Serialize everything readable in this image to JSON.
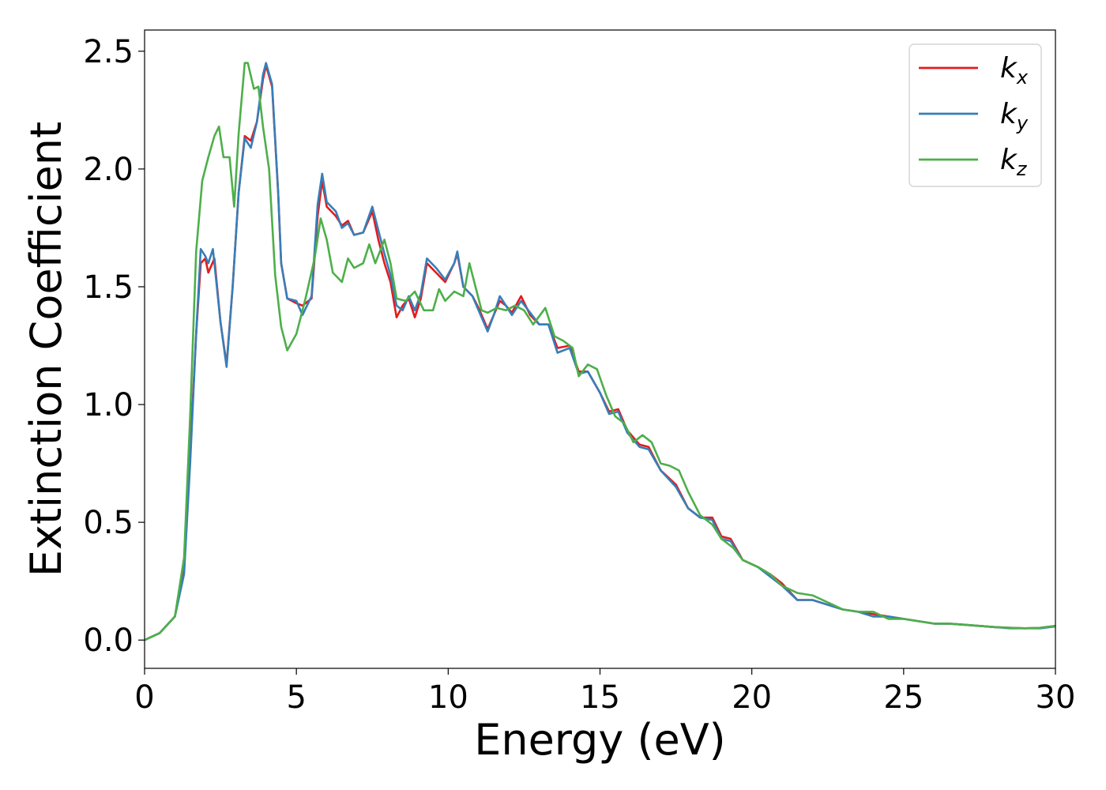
{
  "chart_data": {
    "type": "line",
    "xlabel": "Energy (eV)",
    "ylabel": "Extinction Coefficient",
    "xlim": [
      0,
      30
    ],
    "ylim": [
      -0.12,
      2.59
    ],
    "xticks": [
      0,
      5,
      10,
      15,
      20,
      25,
      30
    ],
    "xtick_labels": [
      "0",
      "5",
      "10",
      "15",
      "20",
      "25",
      "30"
    ],
    "yticks": [
      0.0,
      0.5,
      1.0,
      1.5,
      2.0,
      2.5
    ],
    "ytick_labels": [
      "0.0",
      "0.5",
      "1.0",
      "1.5",
      "2.0",
      "2.5"
    ],
    "grid": false,
    "legend_position": "top-right",
    "series": [
      {
        "name": "k_x",
        "legend_main": "k",
        "legend_sub": "x",
        "color": "#e41a1c",
        "points": [
          [
            0,
            0.0
          ],
          [
            0.5,
            0.03
          ],
          [
            1.0,
            0.1
          ],
          [
            1.3,
            0.3
          ],
          [
            1.5,
            0.8
          ],
          [
            1.7,
            1.3
          ],
          [
            1.85,
            1.6
          ],
          [
            2.0,
            1.62
          ],
          [
            2.1,
            1.56
          ],
          [
            2.3,
            1.62
          ],
          [
            2.5,
            1.35
          ],
          [
            2.7,
            1.17
          ],
          [
            2.9,
            1.5
          ],
          [
            3.1,
            1.9
          ],
          [
            3.3,
            2.14
          ],
          [
            3.5,
            2.12
          ],
          [
            3.7,
            2.2
          ],
          [
            3.9,
            2.38
          ],
          [
            4.0,
            2.44
          ],
          [
            4.2,
            2.35
          ],
          [
            4.4,
            1.9
          ],
          [
            4.5,
            1.6
          ],
          [
            4.7,
            1.45
          ],
          [
            5.0,
            1.43
          ],
          [
            5.2,
            1.42
          ],
          [
            5.5,
            1.45
          ],
          [
            5.7,
            1.8
          ],
          [
            5.85,
            1.95
          ],
          [
            6.0,
            1.84
          ],
          [
            6.3,
            1.8
          ],
          [
            6.5,
            1.76
          ],
          [
            6.7,
            1.78
          ],
          [
            6.9,
            1.72
          ],
          [
            7.2,
            1.73
          ],
          [
            7.5,
            1.82
          ],
          [
            7.7,
            1.7
          ],
          [
            7.9,
            1.6
          ],
          [
            8.1,
            1.52
          ],
          [
            8.3,
            1.37
          ],
          [
            8.5,
            1.42
          ],
          [
            8.7,
            1.45
          ],
          [
            8.9,
            1.37
          ],
          [
            9.1,
            1.45
          ],
          [
            9.3,
            1.6
          ],
          [
            9.6,
            1.56
          ],
          [
            9.9,
            1.52
          ],
          [
            10.2,
            1.6
          ],
          [
            10.3,
            1.64
          ],
          [
            10.5,
            1.5
          ],
          [
            10.8,
            1.46
          ],
          [
            11.0,
            1.41
          ],
          [
            11.3,
            1.32
          ],
          [
            11.5,
            1.38
          ],
          [
            11.7,
            1.44
          ],
          [
            11.9,
            1.42
          ],
          [
            12.1,
            1.39
          ],
          [
            12.4,
            1.46
          ],
          [
            12.7,
            1.38
          ],
          [
            13.0,
            1.34
          ],
          [
            13.3,
            1.34
          ],
          [
            13.6,
            1.24
          ],
          [
            14.0,
            1.25
          ],
          [
            14.3,
            1.14
          ],
          [
            14.6,
            1.14
          ],
          [
            15.0,
            1.05
          ],
          [
            15.3,
            0.97
          ],
          [
            15.6,
            0.98
          ],
          [
            15.9,
            0.89
          ],
          [
            16.3,
            0.83
          ],
          [
            16.6,
            0.82
          ],
          [
            17.0,
            0.72
          ],
          [
            17.5,
            0.66
          ],
          [
            17.9,
            0.56
          ],
          [
            18.3,
            0.52
          ],
          [
            18.7,
            0.52
          ],
          [
            19.0,
            0.44
          ],
          [
            19.3,
            0.43
          ],
          [
            19.7,
            0.34
          ],
          [
            20.2,
            0.31
          ],
          [
            20.6,
            0.28
          ],
          [
            21.0,
            0.24
          ],
          [
            21.5,
            0.17
          ],
          [
            22.0,
            0.17
          ],
          [
            22.5,
            0.15
          ],
          [
            23.0,
            0.13
          ],
          [
            23.5,
            0.12
          ],
          [
            24.0,
            0.11
          ],
          [
            24.5,
            0.1
          ],
          [
            25.0,
            0.09
          ],
          [
            25.5,
            0.08
          ],
          [
            26.0,
            0.07
          ],
          [
            26.5,
            0.07
          ],
          [
            27.0,
            0.065
          ],
          [
            27.5,
            0.06
          ],
          [
            28.0,
            0.055
          ],
          [
            28.5,
            0.052
          ],
          [
            29.0,
            0.05
          ],
          [
            29.5,
            0.052
          ],
          [
            30.0,
            0.06
          ]
        ]
      },
      {
        "name": "k_y",
        "legend_main": "k",
        "legend_sub": "y",
        "color": "#377eb8",
        "points": [
          [
            0,
            0.0
          ],
          [
            0.5,
            0.03
          ],
          [
            1.0,
            0.1
          ],
          [
            1.3,
            0.28
          ],
          [
            1.5,
            0.75
          ],
          [
            1.7,
            1.3
          ],
          [
            1.85,
            1.66
          ],
          [
            2.0,
            1.63
          ],
          [
            2.1,
            1.6
          ],
          [
            2.25,
            1.66
          ],
          [
            2.5,
            1.35
          ],
          [
            2.7,
            1.16
          ],
          [
            2.9,
            1.5
          ],
          [
            3.1,
            1.9
          ],
          [
            3.3,
            2.13
          ],
          [
            3.5,
            2.09
          ],
          [
            3.7,
            2.2
          ],
          [
            3.9,
            2.4
          ],
          [
            4.0,
            2.45
          ],
          [
            4.2,
            2.36
          ],
          [
            4.4,
            1.9
          ],
          [
            4.5,
            1.6
          ],
          [
            4.7,
            1.45
          ],
          [
            5.0,
            1.44
          ],
          [
            5.2,
            1.38
          ],
          [
            5.5,
            1.46
          ],
          [
            5.7,
            1.85
          ],
          [
            5.85,
            1.98
          ],
          [
            6.0,
            1.86
          ],
          [
            6.3,
            1.82
          ],
          [
            6.5,
            1.75
          ],
          [
            6.7,
            1.77
          ],
          [
            6.9,
            1.72
          ],
          [
            7.2,
            1.73
          ],
          [
            7.5,
            1.84
          ],
          [
            7.7,
            1.74
          ],
          [
            7.9,
            1.64
          ],
          [
            8.1,
            1.55
          ],
          [
            8.3,
            1.42
          ],
          [
            8.5,
            1.4
          ],
          [
            8.7,
            1.46
          ],
          [
            8.9,
            1.4
          ],
          [
            9.1,
            1.47
          ],
          [
            9.3,
            1.62
          ],
          [
            9.6,
            1.58
          ],
          [
            9.9,
            1.53
          ],
          [
            10.2,
            1.6
          ],
          [
            10.3,
            1.65
          ],
          [
            10.5,
            1.5
          ],
          [
            10.8,
            1.46
          ],
          [
            11.0,
            1.4
          ],
          [
            11.3,
            1.31
          ],
          [
            11.5,
            1.38
          ],
          [
            11.7,
            1.46
          ],
          [
            11.9,
            1.42
          ],
          [
            12.1,
            1.38
          ],
          [
            12.4,
            1.44
          ],
          [
            12.7,
            1.39
          ],
          [
            13.0,
            1.34
          ],
          [
            13.3,
            1.34
          ],
          [
            13.6,
            1.22
          ],
          [
            14.0,
            1.24
          ],
          [
            14.3,
            1.13
          ],
          [
            14.6,
            1.14
          ],
          [
            15.0,
            1.05
          ],
          [
            15.3,
            0.96
          ],
          [
            15.6,
            0.97
          ],
          [
            15.9,
            0.88
          ],
          [
            16.3,
            0.82
          ],
          [
            16.6,
            0.81
          ],
          [
            17.0,
            0.72
          ],
          [
            17.5,
            0.65
          ],
          [
            17.9,
            0.56
          ],
          [
            18.3,
            0.52
          ],
          [
            18.7,
            0.51
          ],
          [
            19.0,
            0.43
          ],
          [
            19.3,
            0.42
          ],
          [
            19.7,
            0.34
          ],
          [
            20.2,
            0.31
          ],
          [
            20.6,
            0.27
          ],
          [
            21.0,
            0.23
          ],
          [
            21.5,
            0.17
          ],
          [
            22.0,
            0.17
          ],
          [
            22.5,
            0.15
          ],
          [
            23.0,
            0.13
          ],
          [
            23.5,
            0.12
          ],
          [
            24.0,
            0.1
          ],
          [
            24.5,
            0.1
          ],
          [
            25.0,
            0.09
          ],
          [
            25.5,
            0.08
          ],
          [
            26.0,
            0.07
          ],
          [
            26.5,
            0.07
          ],
          [
            27.0,
            0.065
          ],
          [
            27.5,
            0.06
          ],
          [
            28.0,
            0.055
          ],
          [
            28.5,
            0.05
          ],
          [
            29.0,
            0.05
          ],
          [
            29.5,
            0.05
          ],
          [
            30.0,
            0.058
          ]
        ]
      },
      {
        "name": "k_z",
        "legend_main": "k",
        "legend_sub": "z",
        "color": "#4daf4a",
        "points": [
          [
            0,
            0.0
          ],
          [
            0.5,
            0.03
          ],
          [
            1.0,
            0.1
          ],
          [
            1.3,
            0.35
          ],
          [
            1.5,
            0.95
          ],
          [
            1.7,
            1.65
          ],
          [
            1.9,
            1.95
          ],
          [
            2.1,
            2.05
          ],
          [
            2.3,
            2.14
          ],
          [
            2.45,
            2.18
          ],
          [
            2.6,
            2.05
          ],
          [
            2.8,
            2.05
          ],
          [
            2.95,
            1.84
          ],
          [
            3.1,
            2.15
          ],
          [
            3.3,
            2.45
          ],
          [
            3.4,
            2.45
          ],
          [
            3.6,
            2.34
          ],
          [
            3.75,
            2.35
          ],
          [
            3.9,
            2.18
          ],
          [
            4.1,
            2.0
          ],
          [
            4.3,
            1.55
          ],
          [
            4.5,
            1.33
          ],
          [
            4.7,
            1.23
          ],
          [
            5.0,
            1.3
          ],
          [
            5.3,
            1.45
          ],
          [
            5.6,
            1.62
          ],
          [
            5.8,
            1.79
          ],
          [
            6.0,
            1.7
          ],
          [
            6.2,
            1.56
          ],
          [
            6.5,
            1.52
          ],
          [
            6.7,
            1.62
          ],
          [
            6.9,
            1.58
          ],
          [
            7.2,
            1.6
          ],
          [
            7.4,
            1.68
          ],
          [
            7.6,
            1.6
          ],
          [
            7.9,
            1.7
          ],
          [
            8.1,
            1.6
          ],
          [
            8.3,
            1.45
          ],
          [
            8.6,
            1.44
          ],
          [
            8.9,
            1.48
          ],
          [
            9.2,
            1.4
          ],
          [
            9.5,
            1.4
          ],
          [
            9.7,
            1.49
          ],
          [
            9.9,
            1.44
          ],
          [
            10.2,
            1.48
          ],
          [
            10.5,
            1.46
          ],
          [
            10.7,
            1.6
          ],
          [
            10.9,
            1.5
          ],
          [
            11.1,
            1.4
          ],
          [
            11.3,
            1.39
          ],
          [
            11.6,
            1.41
          ],
          [
            11.9,
            1.4
          ],
          [
            12.2,
            1.42
          ],
          [
            12.5,
            1.4
          ],
          [
            12.8,
            1.34
          ],
          [
            13.2,
            1.41
          ],
          [
            13.5,
            1.29
          ],
          [
            13.8,
            1.27
          ],
          [
            14.1,
            1.24
          ],
          [
            14.3,
            1.12
          ],
          [
            14.6,
            1.17
          ],
          [
            14.9,
            1.15
          ],
          [
            15.2,
            1.04
          ],
          [
            15.5,
            0.95
          ],
          [
            15.8,
            0.92
          ],
          [
            16.1,
            0.84
          ],
          [
            16.4,
            0.87
          ],
          [
            16.7,
            0.84
          ],
          [
            17.0,
            0.75
          ],
          [
            17.3,
            0.74
          ],
          [
            17.6,
            0.72
          ],
          [
            17.9,
            0.63
          ],
          [
            18.3,
            0.53
          ],
          [
            18.7,
            0.49
          ],
          [
            19.0,
            0.43
          ],
          [
            19.4,
            0.39
          ],
          [
            19.7,
            0.34
          ],
          [
            20.2,
            0.31
          ],
          [
            20.6,
            0.28
          ],
          [
            21.0,
            0.23
          ],
          [
            21.5,
            0.2
          ],
          [
            22.0,
            0.19
          ],
          [
            22.5,
            0.16
          ],
          [
            23.0,
            0.13
          ],
          [
            23.5,
            0.12
          ],
          [
            24.0,
            0.12
          ],
          [
            24.5,
            0.09
          ],
          [
            25.0,
            0.09
          ],
          [
            25.5,
            0.08
          ],
          [
            26.0,
            0.07
          ],
          [
            26.5,
            0.07
          ],
          [
            27.0,
            0.065
          ],
          [
            27.5,
            0.06
          ],
          [
            28.0,
            0.055
          ],
          [
            28.5,
            0.052
          ],
          [
            29.0,
            0.05
          ],
          [
            29.5,
            0.052
          ],
          [
            30.0,
            0.06
          ]
        ]
      }
    ]
  }
}
